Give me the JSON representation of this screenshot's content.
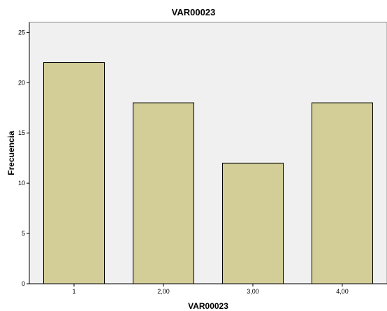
{
  "chart_data": {
    "type": "bar",
    "title": "VAR00023",
    "xlabel": "VAR00023",
    "ylabel": "Frecuencia",
    "categories": [
      "1",
      "2,00",
      "3,00",
      "4,00"
    ],
    "values": [
      22,
      18,
      12,
      18
    ],
    "ylim": [
      0,
      26
    ],
    "yticks": [
      0,
      5,
      10,
      15,
      20,
      25
    ],
    "bar_color": "#d3ce98",
    "bar_edge_color": "#000000",
    "plot_background": "#f0f0f0",
    "grid": false
  }
}
